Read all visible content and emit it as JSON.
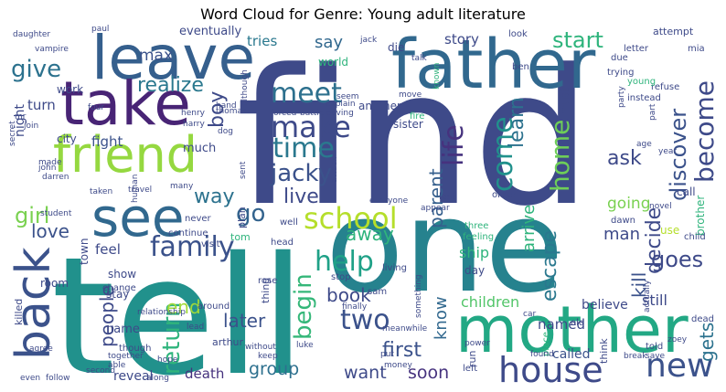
{
  "title": "Word Cloud for Genre: Young adult literature",
  "chart_data": {
    "type": "wordcloud",
    "title": "Word Cloud for Genre: Young adult literature",
    "words": [
      {
        "text": "find",
        "weight": 100,
        "color": "#3e4a89"
      },
      {
        "text": "tell",
        "weight": 98,
        "color": "#21918c"
      },
      {
        "text": "one",
        "weight": 92,
        "color": "#26828e"
      },
      {
        "text": "father",
        "weight": 62,
        "color": "#31688e"
      },
      {
        "text": "mother",
        "weight": 58,
        "color": "#22a884"
      },
      {
        "text": "leave",
        "weight": 55,
        "color": "#355f8d"
      },
      {
        "text": "take",
        "weight": 55,
        "color": "#482475"
      },
      {
        "text": "see",
        "weight": 48,
        "color": "#31688e"
      },
      {
        "text": "friend",
        "weight": 46,
        "color": "#95d840"
      },
      {
        "text": "back",
        "weight": 45,
        "color": "#3b528b"
      },
      {
        "text": "house",
        "weight": 32,
        "color": "#3e4a89"
      },
      {
        "text": "new",
        "weight": 30,
        "color": "#3b528b"
      },
      {
        "text": "make",
        "weight": 28,
        "color": "#3e4a89"
      },
      {
        "text": "school",
        "weight": 28,
        "color": "#b5de2b"
      },
      {
        "text": "meet",
        "weight": 26,
        "color": "#2d708e"
      },
      {
        "text": "come",
        "weight": 26,
        "color": "#21918c"
      },
      {
        "text": "family",
        "weight": 26,
        "color": "#3b528b"
      },
      {
        "text": "time",
        "weight": 26,
        "color": "#2a788e"
      },
      {
        "text": "two",
        "weight": 26,
        "color": "#3b528b"
      },
      {
        "text": "help",
        "weight": 25,
        "color": "#1fa187"
      },
      {
        "text": "life",
        "weight": 25,
        "color": "#46327e"
      },
      {
        "text": "become",
        "weight": 24,
        "color": "#3e4a89"
      },
      {
        "text": "home",
        "weight": 24,
        "color": "#6ece58"
      },
      {
        "text": "jacky",
        "weight": 22,
        "color": "#3b528b"
      },
      {
        "text": "go",
        "weight": 22,
        "color": "#33638d"
      },
      {
        "text": "give",
        "weight": 22,
        "color": "#2c728e"
      },
      {
        "text": "return",
        "weight": 22,
        "color": "#2fb47c"
      },
      {
        "text": "begin",
        "weight": 22,
        "color": "#35b779"
      },
      {
        "text": "discover",
        "weight": 22,
        "color": "#3b528b"
      },
      {
        "text": "girl",
        "weight": 22,
        "color": "#7ad151"
      },
      {
        "text": "goes",
        "weight": 22,
        "color": "#3e4a89"
      },
      {
        "text": "start",
        "weight": 20,
        "color": "#2fb47c"
      },
      {
        "text": "way",
        "weight": 20,
        "color": "#2c728e"
      },
      {
        "text": "escape",
        "weight": 20,
        "color": "#2a788e"
      },
      {
        "text": "decide",
        "weight": 20,
        "color": "#3e4a89"
      },
      {
        "text": "ask",
        "weight": 20,
        "color": "#3e4a89"
      },
      {
        "text": "first",
        "weight": 20,
        "color": "#3b528b"
      },
      {
        "text": "realize",
        "weight": 19,
        "color": "#2a788e"
      },
      {
        "text": "boy",
        "weight": 19,
        "color": "#3e4a89"
      },
      {
        "text": "live",
        "weight": 19,
        "color": "#3e4a89"
      },
      {
        "text": "learn",
        "weight": 19,
        "color": "#2c728e"
      },
      {
        "text": "parent",
        "weight": 18,
        "color": "#355f8d"
      },
      {
        "text": "love",
        "weight": 18,
        "color": "#3b528b"
      },
      {
        "text": "people",
        "weight": 18,
        "color": "#3e4a89"
      },
      {
        "text": "end",
        "weight": 18,
        "color": "#a0da39"
      },
      {
        "text": "away",
        "weight": 18,
        "color": "#2fb47c"
      },
      {
        "text": "book",
        "weight": 18,
        "color": "#3e4a89"
      },
      {
        "text": "later",
        "weight": 18,
        "color": "#3b528b"
      },
      {
        "text": "kill",
        "weight": 18,
        "color": "#3b528b"
      },
      {
        "text": "gets",
        "weight": 18,
        "color": "#2c728e"
      },
      {
        "text": "group",
        "weight": 17,
        "color": "#2d708e"
      },
      {
        "text": "soon",
        "weight": 17,
        "color": "#46327e"
      },
      {
        "text": "want",
        "weight": 17,
        "color": "#3e4a89"
      },
      {
        "text": "arrive",
        "weight": 16,
        "color": "#2fb47c"
      },
      {
        "text": "know",
        "weight": 16,
        "color": "#31688e"
      },
      {
        "text": "man",
        "weight": 16,
        "color": "#3e4a89"
      },
      {
        "text": "say",
        "weight": 16,
        "color": "#31688e"
      },
      {
        "text": "max",
        "weight": 15,
        "color": "#3b528b"
      },
      {
        "text": "going",
        "weight": 15,
        "color": "#7ad151"
      },
      {
        "text": "children",
        "weight": 14,
        "color": "#52c569"
      },
      {
        "text": "ship",
        "weight": 14,
        "color": "#2fb47c"
      },
      {
        "text": "still",
        "weight": 14,
        "color": "#3e4a89"
      },
      {
        "text": "death",
        "weight": 14,
        "color": "#46327e"
      },
      {
        "text": "tries",
        "weight": 14,
        "color": "#2a788e"
      },
      {
        "text": "story",
        "weight": 14,
        "color": "#3e4a89"
      },
      {
        "text": "fight",
        "weight": 13,
        "color": "#3b528b"
      },
      {
        "text": "turn",
        "weight": 13,
        "color": "#3e4a89"
      },
      {
        "text": "feel",
        "weight": 13,
        "color": "#3e4a89"
      },
      {
        "text": "named",
        "weight": 13,
        "color": "#3e4a89"
      },
      {
        "text": "believe",
        "weight": 12,
        "color": "#3e4a89"
      },
      {
        "text": "called",
        "weight": 12,
        "color": "#3b528b"
      },
      {
        "text": "reveal",
        "weight": 12,
        "color": "#3e4a89"
      },
      {
        "text": "night",
        "weight": 12,
        "color": "#3e4a89"
      },
      {
        "text": "much",
        "weight": 11,
        "color": "#3e4a89"
      },
      {
        "text": "eventually",
        "weight": 11,
        "color": "#3e4a89"
      },
      {
        "text": "name",
        "weight": 11,
        "color": "#3e4a89"
      },
      {
        "text": "show",
        "weight": 10,
        "color": "#3e4a89"
      },
      {
        "text": "stay",
        "weight": 10,
        "color": "#3e4a89"
      },
      {
        "text": "sister",
        "weight": 10,
        "color": "#3e4a89"
      },
      {
        "text": "town",
        "weight": 10,
        "color": "#3e4a89"
      },
      {
        "text": "city",
        "weight": 10,
        "color": "#3e4a89"
      },
      {
        "text": "world",
        "weight": 10,
        "color": "#2fb47c"
      },
      {
        "text": "another",
        "weight": 10,
        "color": "#3e4a89"
      },
      {
        "text": "must",
        "weight": 10,
        "color": "#3e4a89"
      },
      {
        "text": "day",
        "weight": 10,
        "color": "#3e4a89"
      },
      {
        "text": "call",
        "weight": 10,
        "color": "#3e4a89"
      },
      {
        "text": "brother",
        "weight": 10,
        "color": "#2fb47c"
      },
      {
        "text": "work",
        "weight": 10,
        "color": "#3e4a89"
      },
      {
        "text": "room",
        "weight": 10,
        "color": "#3e4a89"
      },
      {
        "text": "die",
        "weight": 10,
        "color": "#3e4a89"
      },
      {
        "text": "use",
        "weight": 10,
        "color": "#b5de2b"
      },
      {
        "text": "tom",
        "weight": 9,
        "color": "#2fb47c"
      },
      {
        "text": "attempt",
        "weight": 9,
        "color": "#3e4a89"
      },
      {
        "text": "killed",
        "weight": 9,
        "color": "#3e4a89"
      },
      {
        "text": "think",
        "weight": 9,
        "color": "#3e4a89"
      },
      {
        "text": "run",
        "weight": 9,
        "color": "#3e4a89"
      },
      {
        "text": "plan",
        "weight": 8,
        "color": "#3e4a89"
      },
      {
        "text": "thing",
        "weight": 8,
        "color": "#3e4a89"
      },
      {
        "text": "arthur",
        "weight": 8,
        "color": "#3e4a89"
      },
      {
        "text": "though",
        "weight": 8,
        "color": "#3e4a89"
      },
      {
        "text": "left",
        "weight": 8,
        "color": "#3e4a89"
      },
      {
        "text": "told",
        "weight": 8,
        "color": "#3e4a89"
      },
      {
        "text": "age",
        "weight": 7,
        "color": "#3e4a89"
      },
      {
        "text": "fire",
        "weight": 7,
        "color": "#2fb47c"
      },
      {
        "text": "place",
        "weight": 7,
        "color": "#2fb47c"
      },
      {
        "text": "head",
        "weight": 7,
        "color": "#3e4a89"
      },
      {
        "text": "around",
        "weight": 7,
        "color": "#3e4a89"
      },
      {
        "text": "rose",
        "weight": 7,
        "color": "#3e4a89"
      },
      {
        "text": "visit",
        "weight": 7,
        "color": "#3e4a89"
      },
      {
        "text": "continue",
        "weight": 7,
        "color": "#3e4a89"
      },
      {
        "text": "change",
        "weight": 7,
        "color": "#3e4a89"
      },
      {
        "text": "stop",
        "weight": 7,
        "color": "#3e4a89"
      },
      {
        "text": "living",
        "weight": 7,
        "color": "#3e4a89"
      },
      {
        "text": "dead",
        "weight": 7,
        "color": "#3e4a89"
      },
      {
        "text": "child",
        "weight": 7,
        "color": "#3e4a89"
      },
      {
        "text": "old",
        "weight": 7,
        "color": "#3e4a89"
      },
      {
        "text": "sam",
        "weight": 7,
        "color": "#3e4a89"
      },
      {
        "text": "three",
        "weight": 7,
        "color": "#2fb47c"
      },
      {
        "text": "feeling",
        "weight": 7,
        "color": "#2fb47c"
      },
      {
        "text": "well",
        "weight": 7,
        "color": "#3e4a89"
      },
      {
        "text": "never",
        "weight": 7,
        "color": "#3e4a89"
      },
      {
        "text": "last",
        "weight": 7,
        "color": "#3e4a89"
      },
      {
        "text": "order",
        "weight": 7,
        "color": "#3e4a89"
      },
      {
        "text": "dawn",
        "weight": 7,
        "color": "#3e4a89"
      },
      {
        "text": "instead",
        "weight": 7,
        "color": "#3e4a89"
      },
      {
        "text": "refuse",
        "weight": 7,
        "color": "#3e4a89"
      },
      {
        "text": "trying",
        "weight": 7,
        "color": "#3e4a89"
      },
      {
        "text": "young",
        "weight": 7,
        "color": "#2fb47c"
      },
      {
        "text": "due",
        "weight": 7,
        "color": "#3e4a89"
      },
      {
        "text": "ben",
        "weight": 7,
        "color": "#3e4a89"
      },
      {
        "text": "look",
        "weight": 7,
        "color": "#3e4a89"
      },
      {
        "text": "letter",
        "weight": 7,
        "color": "#3e4a89"
      },
      {
        "text": "mia",
        "weight": 7,
        "color": "#3e4a89"
      },
      {
        "text": "jack",
        "weight": 7,
        "color": "#3e4a89"
      },
      {
        "text": "talk",
        "weight": 7,
        "color": "#3e4a89"
      },
      {
        "text": "known",
        "weight": 7,
        "color": "#2fb47c"
      },
      {
        "text": "paul",
        "weight": 7,
        "color": "#3e4a89"
      },
      {
        "text": "daughter",
        "weight": 7,
        "color": "#3e4a89"
      },
      {
        "text": "vampire",
        "weight": 7,
        "color": "#3e4a89"
      },
      {
        "text": "four",
        "weight": 7,
        "color": "#3e4a89"
      },
      {
        "text": "hand",
        "weight": 7,
        "color": "#3e4a89"
      },
      {
        "text": "although",
        "weight": 7,
        "color": "#3e4a89"
      },
      {
        "text": "henry",
        "weight": 7,
        "color": "#3e4a89"
      },
      {
        "text": "harry",
        "weight": 7,
        "color": "#3e4a89"
      },
      {
        "text": "dog",
        "weight": 7,
        "color": "#3e4a89"
      },
      {
        "text": "thomas",
        "weight": 7,
        "color": "#3e4a89"
      },
      {
        "text": "forced",
        "weight": 7,
        "color": "#3e4a89"
      },
      {
        "text": "battle",
        "weight": 7,
        "color": "#3e4a89"
      },
      {
        "text": "seem",
        "weight": 7,
        "color": "#3e4a89"
      },
      {
        "text": "explain",
        "weight": 7,
        "color": "#3e4a89"
      },
      {
        "text": "leaving",
        "weight": 7,
        "color": "#3e4a89"
      },
      {
        "text": "move",
        "weight": 7,
        "color": "#3e4a89"
      },
      {
        "text": "party",
        "weight": 7,
        "color": "#3e4a89"
      },
      {
        "text": "part",
        "weight": 7,
        "color": "#3e4a89"
      },
      {
        "text": "mr",
        "weight": 7,
        "color": "#3e4a89"
      },
      {
        "text": "join",
        "weight": 7,
        "color": "#3e4a89"
      },
      {
        "text": "made",
        "weight": 7,
        "color": "#3e4a89"
      },
      {
        "text": "john",
        "weight": 7,
        "color": "#3e4a89"
      },
      {
        "text": "darren",
        "weight": 7,
        "color": "#3e4a89"
      },
      {
        "text": "taken",
        "weight": 7,
        "color": "#3e4a89"
      },
      {
        "text": "travel",
        "weight": 7,
        "color": "#3e4a89"
      },
      {
        "text": "many",
        "weight": 7,
        "color": "#3e4a89"
      },
      {
        "text": "student",
        "weight": 7,
        "color": "#3e4a89"
      },
      {
        "text": "human",
        "weight": 7,
        "color": "#3e4a89"
      },
      {
        "text": "sent",
        "weight": 7,
        "color": "#3e4a89"
      },
      {
        "text": "everyone",
        "weight": 7,
        "color": "#3e4a89"
      },
      {
        "text": "appear",
        "weight": 7,
        "color": "#3e4a89"
      },
      {
        "text": "novel",
        "weight": 7,
        "color": "#3e4a89"
      },
      {
        "text": "secret",
        "weight": 7,
        "color": "#3e4a89"
      },
      {
        "text": "relationship",
        "weight": 7,
        "color": "#3e4a89"
      },
      {
        "text": "finally",
        "weight": 7,
        "color": "#3e4a89"
      },
      {
        "text": "something",
        "weight": 7,
        "color": "#3e4a89"
      },
      {
        "text": "car",
        "weight": 7,
        "color": "#3e4a89"
      },
      {
        "text": "actually",
        "weight": 7,
        "color": "#3e4a89"
      },
      {
        "text": "agree",
        "weight": 7,
        "color": "#3e4a89"
      },
      {
        "text": "lead",
        "weight": 7,
        "color": "#3e4a89"
      },
      {
        "text": "meanwhile",
        "weight": 7,
        "color": "#3e4a89"
      },
      {
        "text": "together",
        "weight": 7,
        "color": "#3e4a89"
      },
      {
        "text": "able",
        "weight": 7,
        "color": "#3e4a89"
      },
      {
        "text": "without",
        "weight": 7,
        "color": "#3e4a89"
      },
      {
        "text": "luke",
        "weight": 7,
        "color": "#3e4a89"
      },
      {
        "text": "power",
        "weight": 7,
        "color": "#3e4a89"
      },
      {
        "text": "hope",
        "weight": 7,
        "color": "#3e4a89"
      },
      {
        "text": "keep",
        "weight": 7,
        "color": "#3e4a89"
      },
      {
        "text": "put",
        "weight": 7,
        "color": "#3e4a89"
      },
      {
        "text": "money",
        "weight": 7,
        "color": "#3e4a89"
      },
      {
        "text": "found",
        "weight": 7,
        "color": "#3e4a89"
      },
      {
        "text": "break",
        "weight": 7,
        "color": "#3e4a89"
      },
      {
        "text": "save",
        "weight": 7,
        "color": "#3e4a89"
      },
      {
        "text": "zoey",
        "weight": 7,
        "color": "#3e4a89"
      },
      {
        "text": "even",
        "weight": 7,
        "color": "#3e4a89"
      },
      {
        "text": "follow",
        "weight": 7,
        "color": "#3e4a89"
      },
      {
        "text": "second",
        "weight": 7,
        "color": "#3e4a89"
      },
      {
        "text": "along",
        "weight": 7,
        "color": "#3e4a89"
      },
      {
        "text": "attack",
        "weight": 7,
        "color": "#3e4a89"
      },
      {
        "text": "year",
        "weight": 7,
        "color": "#3e4a89"
      }
    ]
  }
}
